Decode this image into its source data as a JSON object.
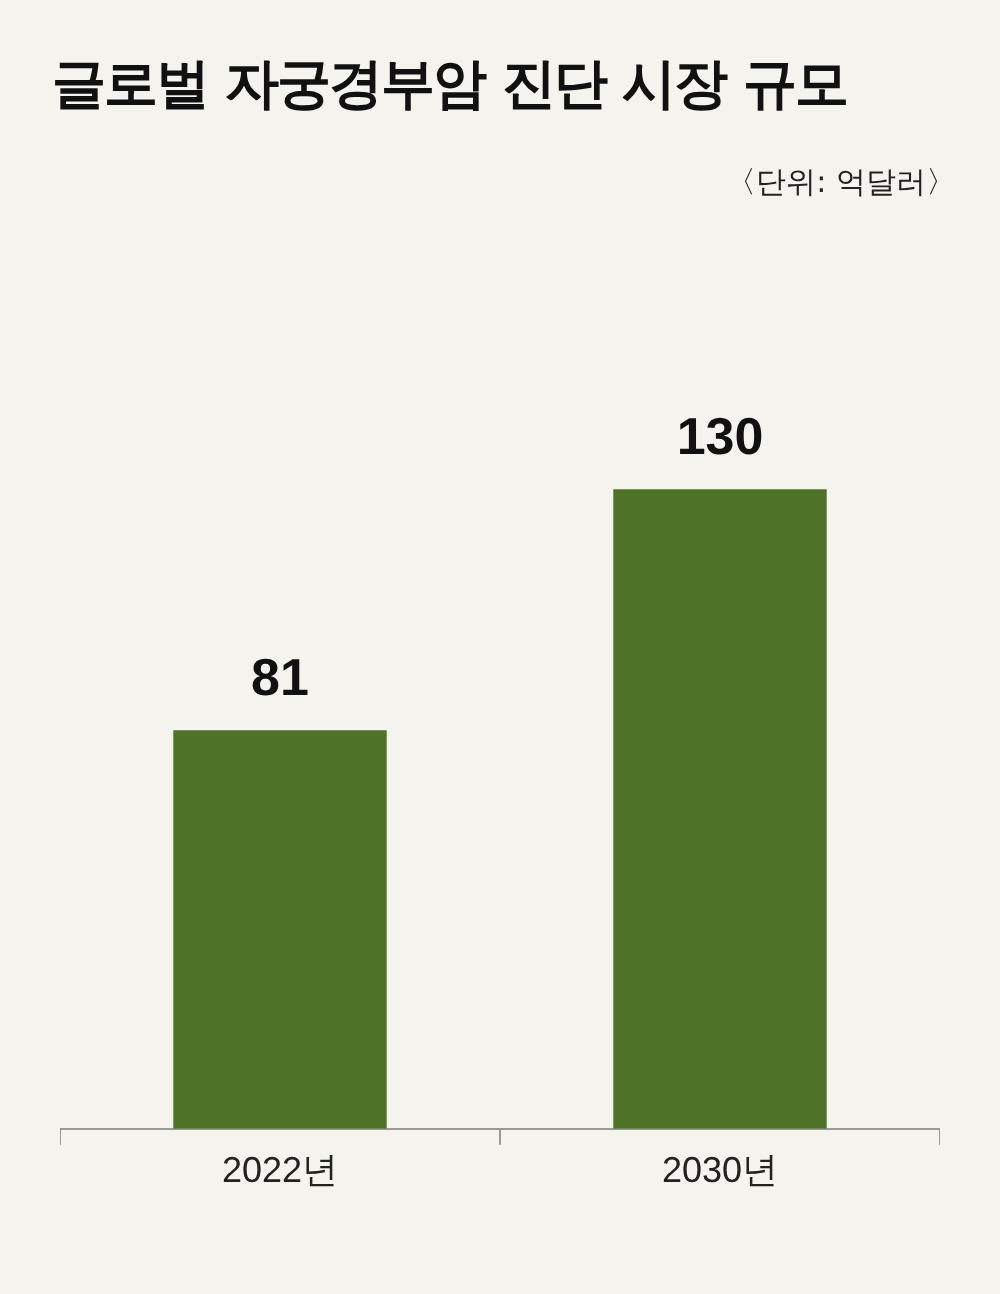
{
  "chart_data": {
    "type": "bar",
    "title": "글로벌 자궁경부암 진단 시장 규모",
    "subtitle": "〈단위: 억달러〉",
    "categories": [
      "2022년",
      "2030년"
    ],
    "values": [
      81,
      130
    ],
    "color": "#4e7326",
    "data_labels": true,
    "grid": false,
    "legend": false,
    "tick_labels": "x"
  }
}
